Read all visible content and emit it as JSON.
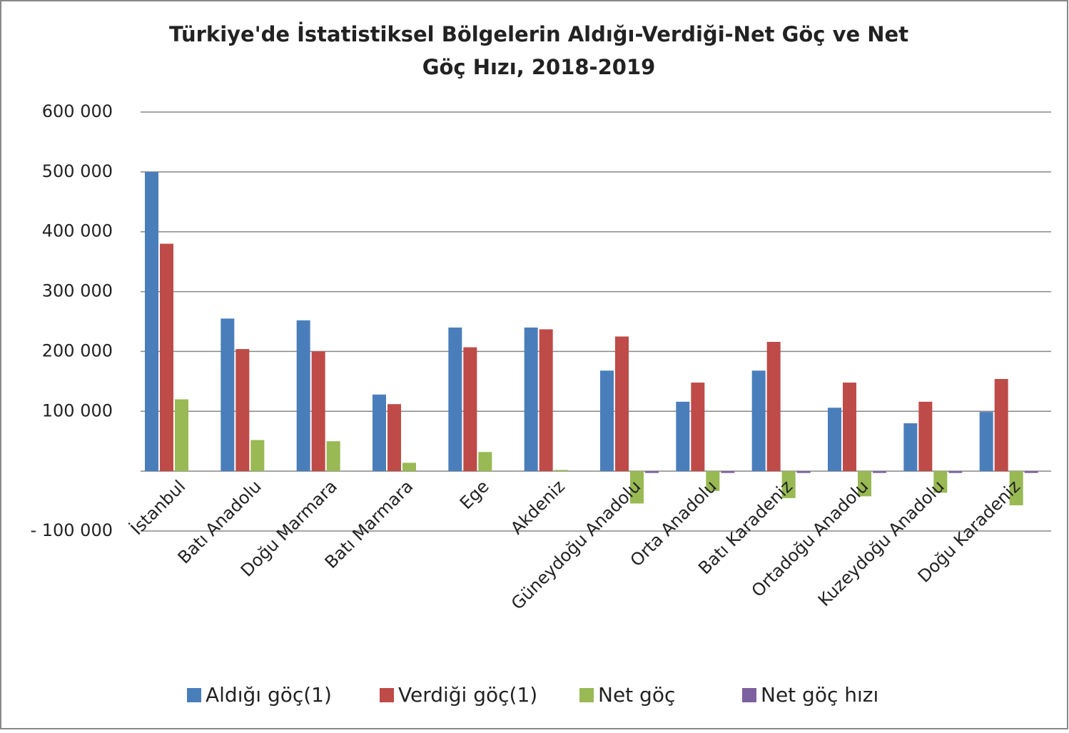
{
  "chart_data": {
    "type": "bar",
    "title": "Türkiye'de İstatistiksel Bölgelerin Aldığı-Verdiği-Net Göç ve Net Göç Hızı, 2018-2019",
    "categories": [
      "İstanbul",
      "Batı Anadolu",
      "Doğu Marmara",
      "Batı Marmara",
      "Ege",
      "Akdeniz",
      "Güneydoğu Anadolu",
      "Orta Anadolu",
      "Batı Karadeniz",
      "Ortadoğu Anadolu",
      "Kuzeydoğu Anadolu",
      "Doğu Karadeniz"
    ],
    "series": [
      {
        "name": "Aldığı göç(1)",
        "color": "#4a7ebb",
        "values": [
          500000,
          255000,
          252000,
          128000,
          240000,
          240000,
          168000,
          116000,
          168000,
          106000,
          80000,
          99000
        ]
      },
      {
        "name": "Verdiği göç(1)",
        "color": "#be4b48",
        "values": [
          380000,
          204000,
          200000,
          112000,
          207000,
          237000,
          225000,
          148000,
          216000,
          148000,
          116000,
          154000
        ]
      },
      {
        "name": "Net göç",
        "color": "#98b954",
        "values": [
          120000,
          52000,
          50000,
          14000,
          32000,
          2000,
          -54000,
          -33000,
          -45000,
          -42000,
          -36000,
          -57000
        ]
      },
      {
        "name": "Net göç hızı",
        "color": "#7d60a0",
        "values": [
          0,
          0,
          0,
          0,
          0,
          0,
          -3000,
          -3000,
          -3000,
          -3000,
          -3000,
          -3000
        ]
      }
    ],
    "ylim": [
      -100000,
      600000
    ],
    "yticks": [
      {
        "value": -100000,
        "label": "- 100 000"
      },
      {
        "value": 100000,
        "label": "100 000"
      },
      {
        "value": 200000,
        "label": "200 000"
      },
      {
        "value": 300000,
        "label": "300 000"
      },
      {
        "value": 400000,
        "label": "400 000"
      },
      {
        "value": 500000,
        "label": "500 000"
      },
      {
        "value": 600000,
        "label": "600 000"
      }
    ],
    "grid": true,
    "legend": "bottom"
  }
}
